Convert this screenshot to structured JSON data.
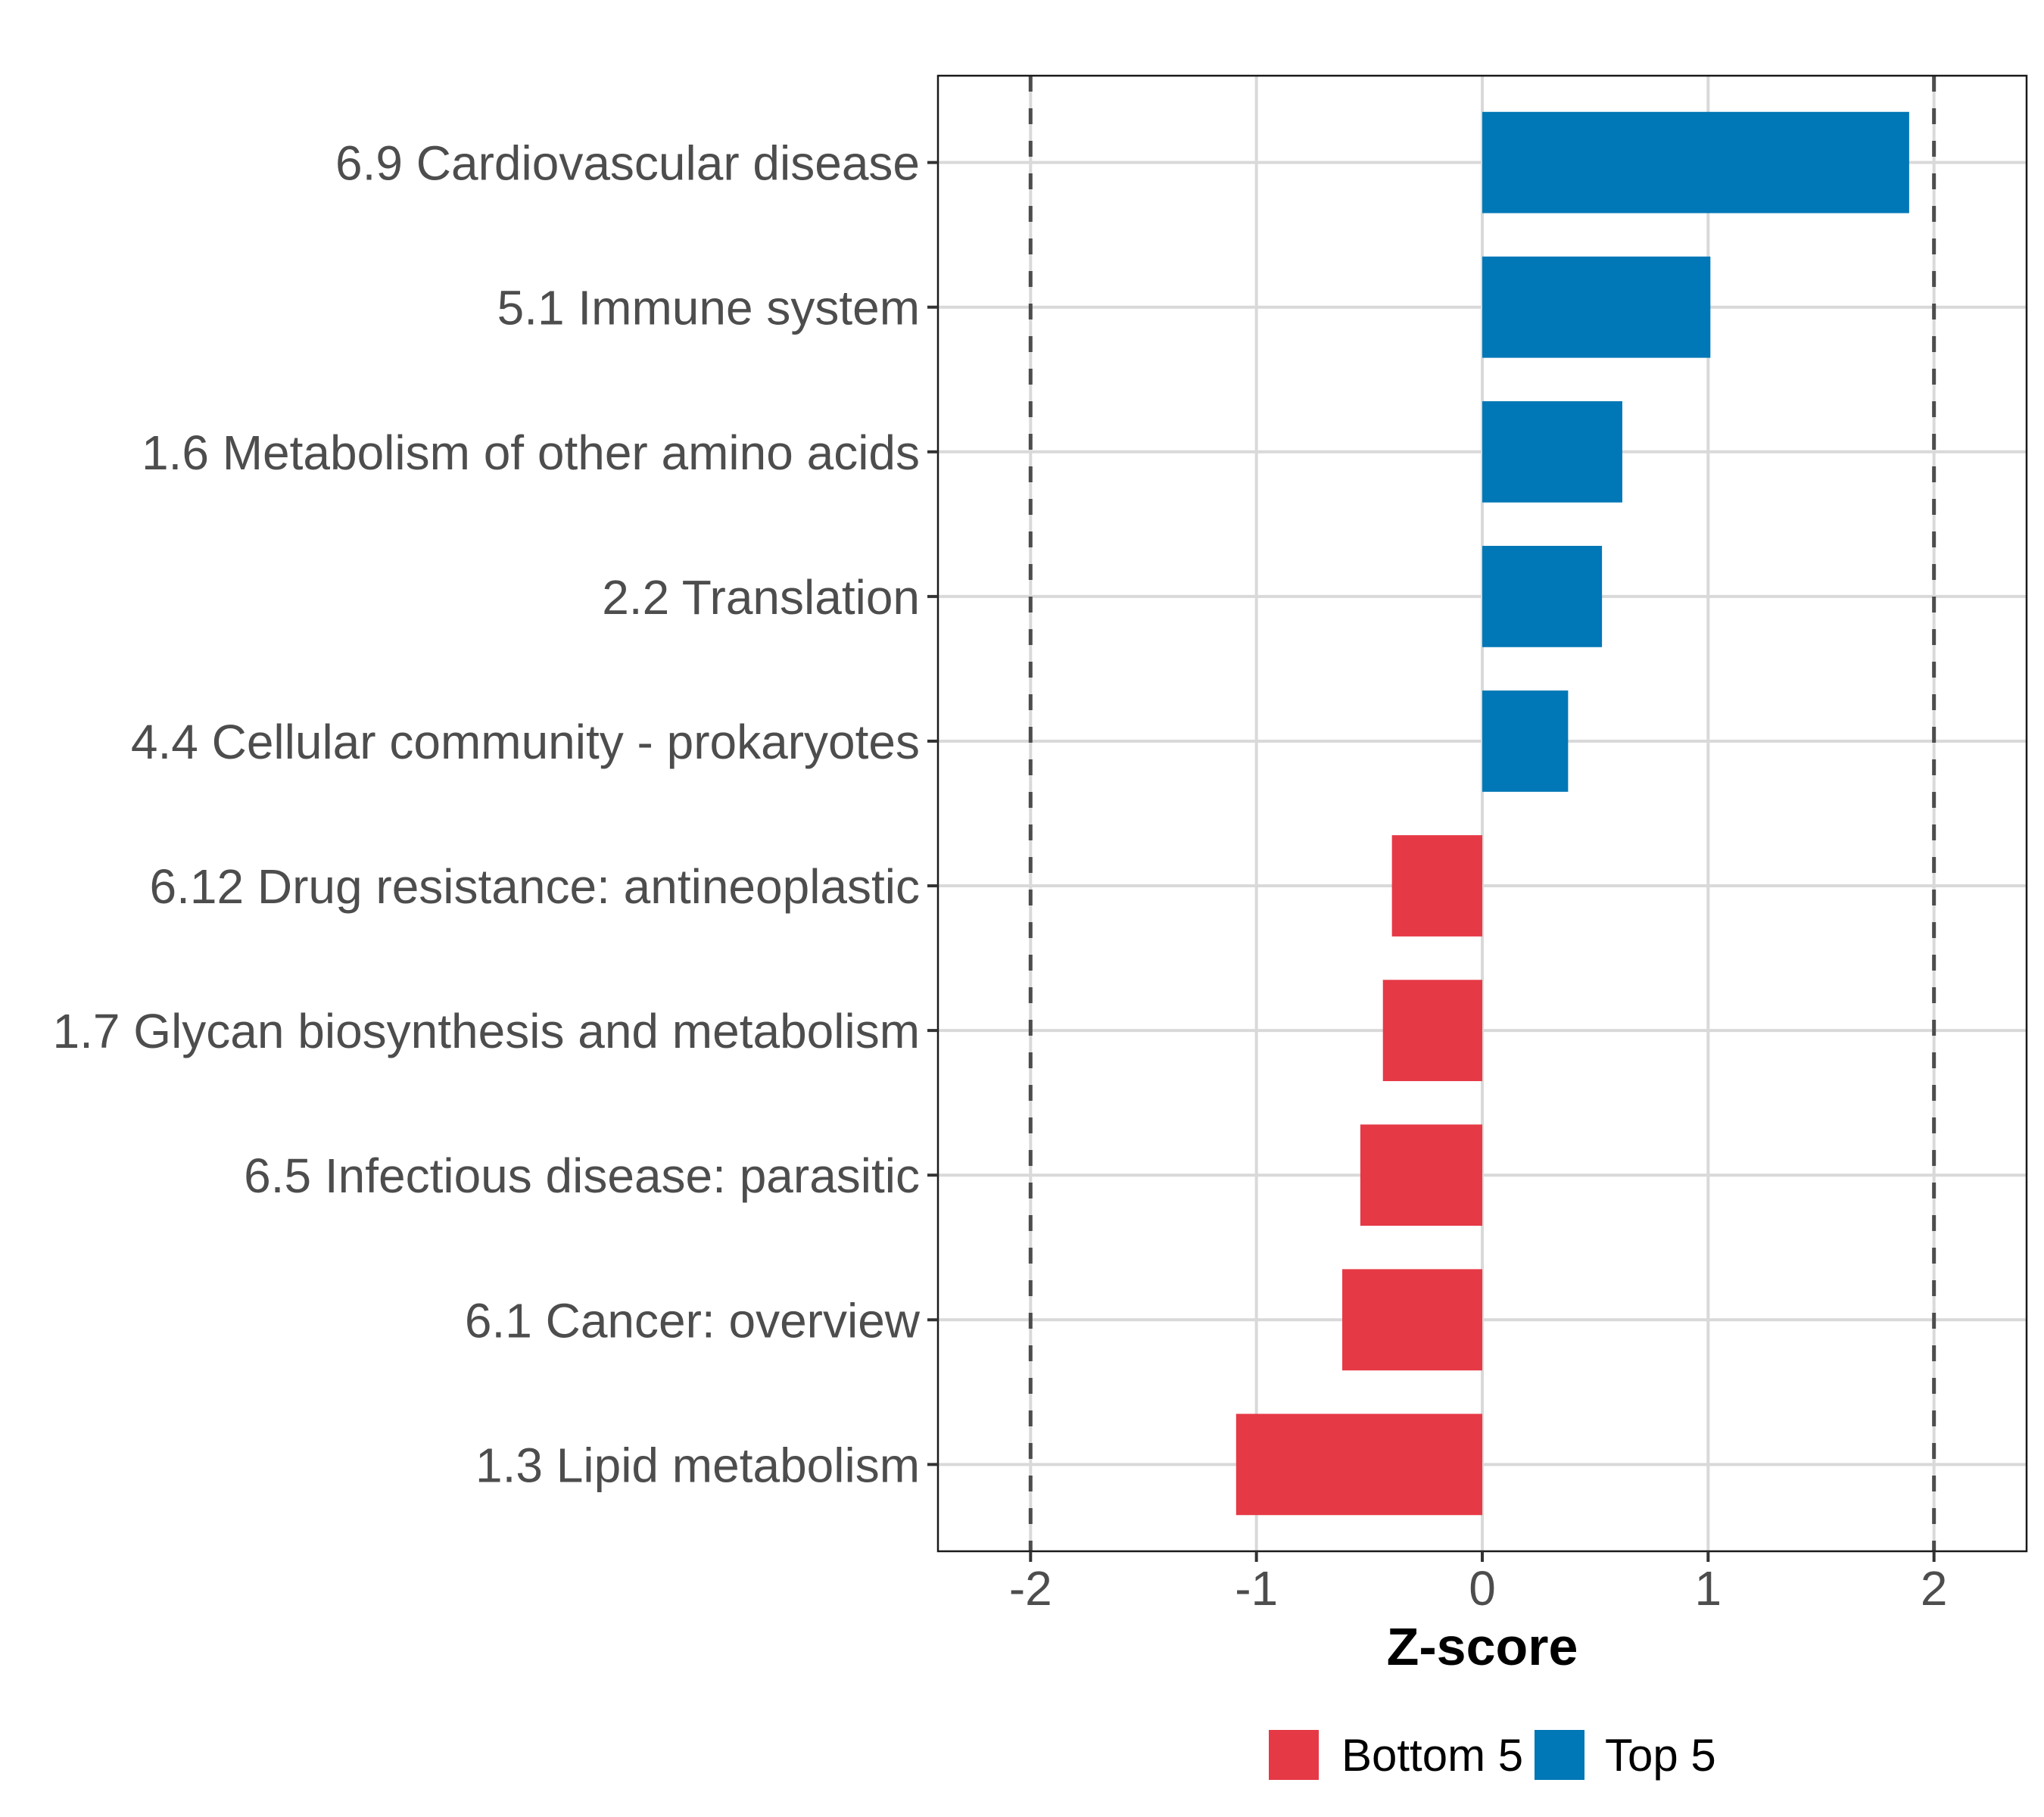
{
  "chart_data": {
    "type": "bar",
    "orientation": "horizontal",
    "title": "",
    "xlabel": "Z-score",
    "ylabel": "",
    "xlim": [
      -2.41,
      2.41
    ],
    "x_ticks": [
      -2,
      -1,
      0,
      1,
      2
    ],
    "x_tick_labels": [
      "-2",
      "-1",
      "0",
      "1",
      "2"
    ],
    "grid": true,
    "reference_lines": [
      {
        "x": -2,
        "style": "dashed"
      },
      {
        "x": 2,
        "style": "dashed"
      }
    ],
    "categories": [
      "6.9 Cardiovascular disease",
      "5.1 Immune system",
      "1.6 Metabolism of other amino acids",
      "2.2 Translation",
      "4.4 Cellular community - prokaryotes",
      "6.12 Drug resistance: antineoplastic",
      "1.7 Glycan biosynthesis and metabolism",
      "6.5 Infectious disease: parasitic",
      "6.1 Cancer: overview",
      "1.3 Lipid metabolism"
    ],
    "values": [
      1.89,
      1.01,
      0.62,
      0.53,
      0.38,
      -0.4,
      -0.44,
      -0.54,
      -0.62,
      -1.09
    ],
    "groups": [
      "Top 5",
      "Top 5",
      "Top 5",
      "Top 5",
      "Top 5",
      "Bottom 5",
      "Bottom 5",
      "Bottom 5",
      "Bottom 5",
      "Bottom 5"
    ],
    "legend": {
      "position": "bottom",
      "entries": [
        {
          "label": "Bottom 5",
          "color": "#E63946"
        },
        {
          "label": "Top 5",
          "color": "#0077B6"
        }
      ]
    },
    "colors": {
      "Bottom 5": "#E63946",
      "Top 5": "#0077B6",
      "grid": "#D9D9D9",
      "reference_line": "#4D4D4D",
      "axis_text": "#4D4D4D"
    }
  }
}
